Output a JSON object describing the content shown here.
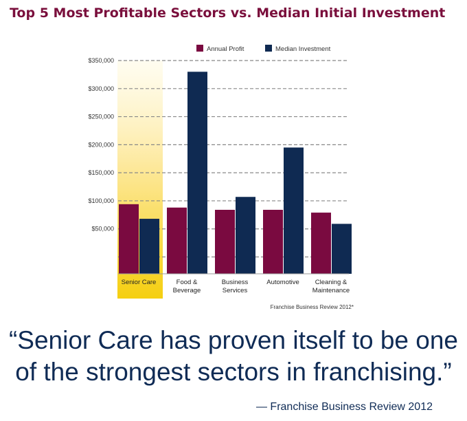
{
  "title": "Top 5 Most Profitable Sectors vs. Median Initial Investment",
  "chart_data": {
    "type": "bar",
    "categories": [
      [
        "Senior Care"
      ],
      [
        "Food &",
        "Beverage"
      ],
      [
        "Business",
        "Services"
      ],
      [
        "Automotive"
      ],
      [
        "Cleaning &",
        "Maintenance"
      ]
    ],
    "highlighted_category": "Senior Care",
    "series": [
      {
        "name": "Annual Profit",
        "values": [
          94000,
          88000,
          84000,
          84000,
          79000
        ],
        "color": "#7a0a40"
      },
      {
        "name": "Median Investment",
        "values": [
          68000,
          330000,
          107000,
          195000,
          59000
        ],
        "color": "#0f2a52"
      }
    ],
    "y_ticks": [
      50000,
      100000,
      150000,
      200000,
      250000,
      300000,
      350000
    ],
    "y_tick_labels": [
      "$50,000",
      "$100,000",
      "$150,000",
      "$200,000",
      "$250,000",
      "$300,000",
      "$350,000"
    ],
    "ylim": [
      -30000,
      350000
    ],
    "grid": true,
    "legend_position": "top",
    "source": "Franchise Business Review 2012*"
  },
  "quote": {
    "line1": "“Senior Care has proven itself to be one",
    "line2": "of the strongest sectors in franchising.”",
    "attribution": "— Franchise Business Review 2012"
  }
}
